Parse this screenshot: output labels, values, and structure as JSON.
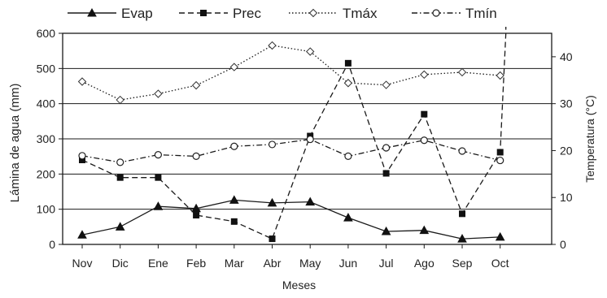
{
  "chart_data": {
    "type": "line",
    "title": "",
    "xlabel": "Meses",
    "ylabel": "Lámina de agua (mm)",
    "y2label": "Temperatura (°C)",
    "categories": [
      "Nov",
      "Dic",
      "Ene",
      "Feb",
      "Mar",
      "Abr",
      "May",
      "Jun",
      "Jul",
      "Ago",
      "Sep",
      "Oct"
    ],
    "ylim": [
      0,
      600
    ],
    "y2lim": [
      0,
      45
    ],
    "yticks": [
      0,
      100,
      200,
      300,
      400,
      500,
      600
    ],
    "y2ticks": [
      0,
      10,
      20,
      30,
      40
    ],
    "grid": "horizontal",
    "legend_position": "top",
    "series": [
      {
        "name": "Evap",
        "axis": "left",
        "marker": "filled-triangle",
        "dash": "solid",
        "values": [
          27,
          50,
          108,
          102,
          126,
          118,
          121,
          76,
          37,
          40,
          16,
          21
        ]
      },
      {
        "name": "Prec",
        "axis": "left",
        "marker": "filled-square",
        "dash": "dashed",
        "values": [
          240,
          190,
          190,
          83,
          65,
          16,
          308,
          515,
          202,
          370,
          87,
          262
        ]
      },
      {
        "name": "Tmáx",
        "axis": "right",
        "marker": "open-diamond",
        "dash": "dotted",
        "values": [
          34.7,
          30.8,
          32.1,
          33.9,
          37.8,
          42.4,
          41.1,
          34.4,
          34.0,
          36.2,
          36.7,
          36.0
        ]
      },
      {
        "name": "Tmín",
        "axis": "right",
        "marker": "open-circle",
        "dash": "dash-dot",
        "values": [
          18.9,
          17.5,
          19.1,
          18.8,
          20.9,
          21.3,
          22.4,
          18.8,
          20.6,
          22.2,
          19.9,
          17.9
        ]
      }
    ],
    "trailing_segment": {
      "series": "Prec",
      "to_category": "Oct",
      "to_value": 600
    }
  }
}
